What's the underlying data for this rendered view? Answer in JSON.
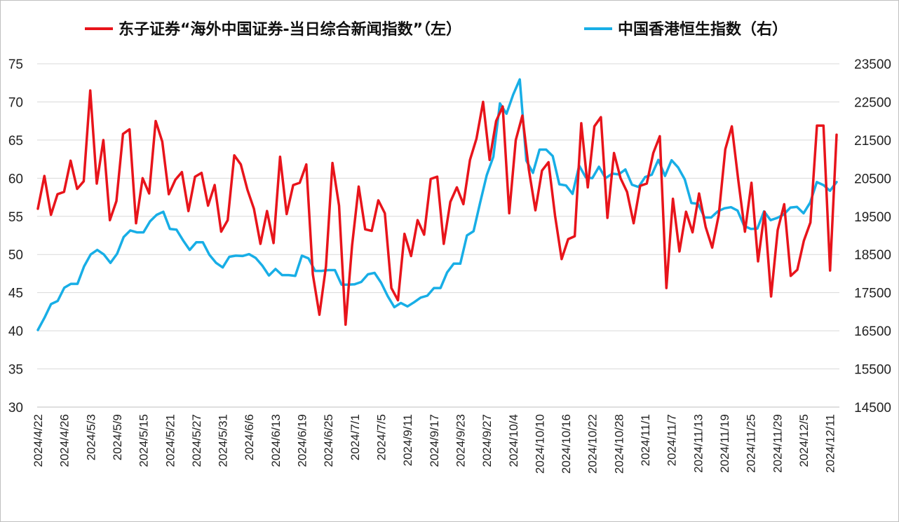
{
  "chart_data": {
    "type": "line",
    "legend_position": "top",
    "grid": true,
    "colors": {
      "left_series": "#e8141b",
      "right_series": "#18aee6",
      "grid": "#d9d9d9"
    },
    "y_left": {
      "ticks": [
        "30",
        "35",
        "40",
        "45",
        "50",
        "55",
        "60",
        "65",
        "70",
        "75"
      ],
      "lim": [
        30,
        75
      ]
    },
    "y_right": {
      "ticks": [
        "14500",
        "15500",
        "16500",
        "17500",
        "18500",
        "19500",
        "20500",
        "21500",
        "22500",
        "23500"
      ],
      "lim": [
        14500,
        23500
      ]
    },
    "x_tick_labels": [
      "2024/4/22",
      "2024/4/26",
      "2024/5/3",
      "2024/5/9",
      "2024/5/15",
      "2024/5/21",
      "2024/5/27",
      "2024/5/31",
      "2024/6/6",
      "2024/6/13",
      "2024/6/19",
      "2024/6/25",
      "2024/7/1",
      "2024/7/5",
      "2024/9/11",
      "2024/9/17",
      "2024/9/23",
      "2024/9/27",
      "2024/10/4",
      "2024/10/10",
      "2024/10/16",
      "2024/10/22",
      "2024/10/28",
      "2024/11/1",
      "2024/11/7",
      "2024/11/13",
      "2024/11/19",
      "2024/11/25",
      "2024/11/29",
      "2024/12/5",
      "2024/12/11"
    ],
    "series": [
      {
        "name": "东子证券“海外中国证券-当日综合新闻指数”（左）",
        "axis": "left",
        "values": [
          56.0,
          60.3,
          55.2,
          57.9,
          58.2,
          62.3,
          58.6,
          59.6,
          71.5,
          59.3,
          65.0,
          54.5,
          57.0,
          65.8,
          66.4,
          54.1,
          60.0,
          58.0,
          67.5,
          64.8,
          57.9,
          59.8,
          60.8,
          55.7,
          60.2,
          60.7,
          56.4,
          59.1,
          53.0,
          54.5,
          63.0,
          61.8,
          58.5,
          56.0,
          51.4,
          55.7,
          51.5,
          62.8,
          55.3,
          59.1,
          59.4,
          61.8,
          47.4,
          42.1,
          48.4,
          62.0,
          56.4,
          40.8,
          51.2,
          58.9,
          53.3,
          53.1,
          57.1,
          55.4,
          45.6,
          44.0,
          52.7,
          49.8,
          54.5,
          52.6,
          59.9,
          60.2,
          51.4,
          56.9,
          58.8,
          56.6,
          62.4,
          65.2,
          70.0,
          62.4,
          67.5,
          69.4,
          55.4,
          65.0,
          68.2,
          61.1,
          55.8,
          61.0,
          62.1,
          55.1,
          49.4,
          52.0,
          52.4,
          67.2,
          58.8,
          66.8,
          68.0,
          54.8,
          63.3,
          60.0,
          58.2,
          54.1,
          59.0,
          59.3,
          63.3,
          65.5,
          45.6,
          57.3,
          50.4,
          55.6,
          52.9,
          58.0,
          53.6,
          50.9,
          55.2,
          63.8,
          66.8,
          59.6,
          53.0,
          59.4,
          49.1,
          55.6,
          44.5,
          53.2,
          56.6,
          47.2,
          48.0,
          51.8,
          54.2,
          66.9,
          66.9,
          47.9,
          65.7
        ]
      },
      {
        "name": "中国香港恒生指数（右）",
        "axis": "right",
        "values": [
          16520,
          16840,
          17200,
          17280,
          17630,
          17730,
          17730,
          18190,
          18500,
          18620,
          18500,
          18280,
          18520,
          18960,
          19130,
          19080,
          19080,
          19370,
          19540,
          19620,
          19170,
          19150,
          18870,
          18620,
          18820,
          18820,
          18490,
          18280,
          18160,
          18440,
          18470,
          18460,
          18510,
          18410,
          18210,
          17950,
          18120,
          17960,
          17960,
          17940,
          18470,
          18400,
          18070,
          18070,
          18090,
          18090,
          17710,
          17710,
          17720,
          17780,
          17980,
          18020,
          17760,
          17410,
          17120,
          17230,
          17140,
          17250,
          17370,
          17420,
          17620,
          17620,
          18030,
          18260,
          18260,
          19000,
          19110,
          19860,
          20580,
          21060,
          22460,
          22190,
          22690,
          23090,
          20960,
          20640,
          21250,
          21250,
          21080,
          20340,
          20310,
          20090,
          20830,
          20520,
          20500,
          20800,
          20500,
          20620,
          20600,
          20730,
          20330,
          20270,
          20530,
          20590,
          20980,
          20560,
          20970,
          20780,
          20470,
          19850,
          19830,
          19470,
          19470,
          19630,
          19710,
          19740,
          19650,
          19250,
          19170,
          19180,
          19630,
          19400,
          19460,
          19550,
          19730,
          19750,
          19580,
          19860,
          20400,
          20320,
          20170,
          20400
        ]
      }
    ]
  }
}
